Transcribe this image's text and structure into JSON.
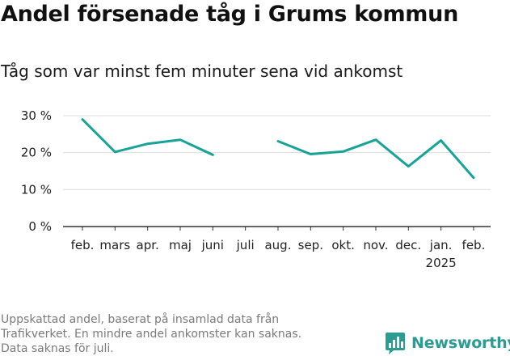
{
  "title": "Andel försenade tåg i Grums kommun",
  "subtitle": "Tåg som var minst fem minuter sena vid ankomst",
  "footnote": {
    "lines": [
      "Uppskattad andel, baserat på insamlad data från",
      "Trafikverket. En mindre andel ankomster kan saknas.",
      "Data saknas för juli."
    ]
  },
  "brand": {
    "name": "Newsworthy"
  },
  "colors": {
    "line": "#17a398",
    "grid": "#dddddd",
    "axis": "#333333",
    "brand": "#2c9c92"
  },
  "chart_data": {
    "type": "line",
    "title": "Andel försenade tåg i Grums kommun",
    "subtitle": "Tåg som var minst fem minuter sena vid ankomst",
    "xlabel": "",
    "ylabel": "",
    "ylim": [
      0,
      30
    ],
    "yticks": [
      0,
      10,
      20,
      30
    ],
    "ytick_labels": [
      "0 %",
      "10 %",
      "20 %",
      "30 %"
    ],
    "grid": true,
    "categories": [
      "feb.",
      "mars",
      "apr.",
      "maj",
      "juni",
      "juli",
      "aug.",
      "sep.",
      "okt.",
      "nov.",
      "dec.",
      "jan.",
      "feb."
    ],
    "year_labels": [
      "",
      "",
      "",
      "",
      "",
      "",
      "",
      "",
      "",
      "",
      "",
      "2025",
      ""
    ],
    "series": [
      {
        "name": "Andel försenade tåg",
        "values": [
          29.0,
          20.2,
          22.4,
          23.5,
          19.4,
          null,
          23.1,
          19.6,
          20.3,
          23.5,
          16.3,
          23.3,
          13.2
        ]
      }
    ]
  }
}
